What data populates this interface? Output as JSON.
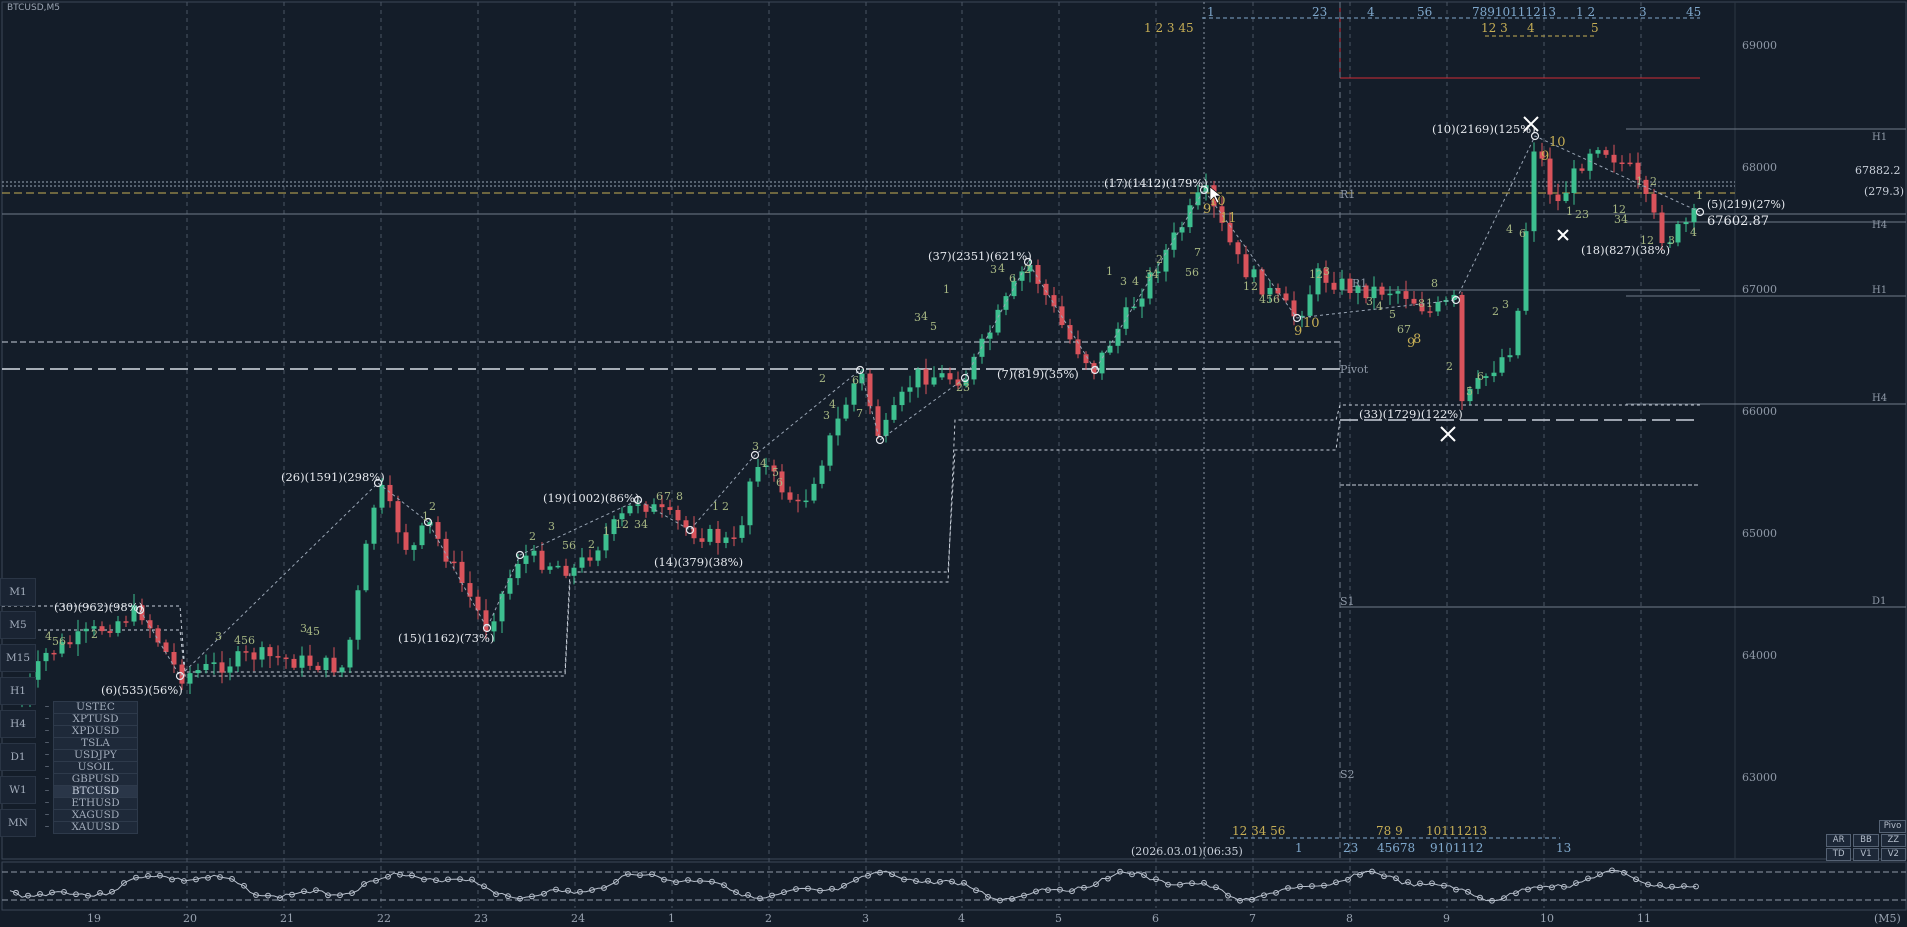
{
  "window": {
    "title": "BTCUSD,M5"
  },
  "price_axis": {
    "ticks": [
      "69000",
      "68000",
      "67000",
      "66000",
      "65000",
      "64000",
      "63000"
    ],
    "bid_label": "67602.87",
    "marker_label": "67882.2",
    "spread_label": "(279.3)",
    "current_wave": "(5)(219)(27%)"
  },
  "time_axis": {
    "labels": [
      "19",
      "20",
      "21",
      "22",
      "23",
      "24",
      "1",
      "2",
      "3",
      "4",
      "5",
      "6",
      "7",
      "8",
      "9",
      "10",
      "11"
    ],
    "period_label": "(M5)",
    "cursor_time": "(2026.03.01)(06:35)"
  },
  "level_labels": {
    "h1_top": "H1",
    "h4_top": "H4",
    "h1_mid": "H1",
    "h4_mid": "H4",
    "d1": "D1",
    "r1": "R1",
    "r1_b": "R1",
    "pivot": "Pivot",
    "s1": "S1",
    "s2": "S2"
  },
  "zigzag_labels": [
    {
      "text": "(30)(962)(98%)"
    },
    {
      "text": "(6)(535)(56%)"
    },
    {
      "text": "(26)(1591)(298%)"
    },
    {
      "text": "(15)(1162)(73%)"
    },
    {
      "text": "(19)(1002)(86%)"
    },
    {
      "text": "(14)(379)(38%)"
    },
    {
      "text": "(37)(2351)(621%)"
    },
    {
      "text": "(7)(819)(35%)"
    },
    {
      "text": "(17)(1412)(179%)"
    },
    {
      "text": "(33)(1729)(122%)"
    },
    {
      "text": "(10)(2169)(125%)"
    },
    {
      "text": "(18)(827)(38%)"
    }
  ],
  "top_counts": {
    "gold_row": "1  2  3  45",
    "blue_row_a": "1",
    "blue_row_b": "23",
    "blue_row_c": "4",
    "blue_row_d": "56",
    "blue_row_e": "78910111213",
    "blue_row_f": "1  2",
    "blue_row_g": "3",
    "blue_row_h": "45",
    "gold_row_b": "12 3",
    "gold_row_c": "4",
    "gold_row_d": "5"
  },
  "bottom_counts": {
    "gold": "12  34  56",
    "gold_b": "78  9",
    "gold_c": "10111213",
    "blue_a": "1",
    "blue_b": "23",
    "blue_c": "45678",
    "blue_d": "9101112",
    "blue_e": "13"
  },
  "timeframes": [
    "M1",
    "M5",
    "M15",
    "H1",
    "H4",
    "D1",
    "W1",
    "MN"
  ],
  "symbols": [
    {
      "name": "USTEC",
      "active": false
    },
    {
      "name": "XPTUSD",
      "active": false
    },
    {
      "name": "XPDUSD",
      "active": false
    },
    {
      "name": "TSLA",
      "active": false
    },
    {
      "name": "USDJPY",
      "active": false
    },
    {
      "name": "USOIL",
      "active": false
    },
    {
      "name": "GBPUSD",
      "active": false
    },
    {
      "name": "BTCUSD",
      "active": true
    },
    {
      "name": "ETHUSD",
      "active": false
    },
    {
      "name": "XAGUSD",
      "active": false
    },
    {
      "name": "XAUUSD",
      "active": false
    }
  ],
  "tool_buttons": {
    "pivo": "Pivo",
    "ar": "AR",
    "bb": "BB",
    "zz": "ZZ",
    "td": "TD",
    "v1": "V1",
    "v2": "V2"
  },
  "colors": {
    "background": "#141d29",
    "bull": "#3dbf8f",
    "bear": "#d9535b",
    "gold": "#c6ae55",
    "blue_count": "#7fa8cc",
    "red_level": "#d02a35",
    "label": "#e6e9ee"
  }
}
